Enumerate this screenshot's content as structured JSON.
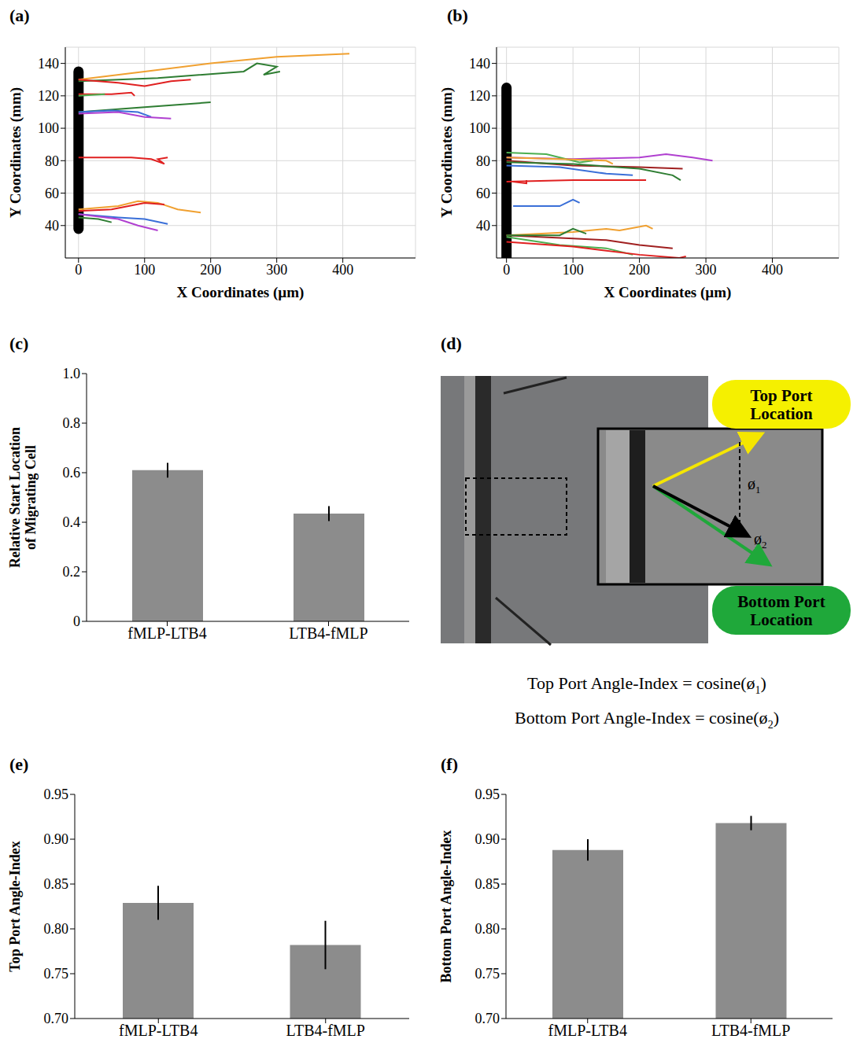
{
  "chart_data": [
    {
      "panel": "(a)",
      "type": "line",
      "x_label": "X Coordinates (µm)",
      "y_label": "Y Coordinates (mm)",
      "xlim": [
        -20,
        510
      ],
      "xticks": [
        0,
        100,
        200,
        300,
        400
      ],
      "ylim": [
        20,
        150
      ],
      "yticks": [
        40,
        60,
        80,
        100,
        120,
        140
      ],
      "grid": true,
      "channel": [
        38,
        135
      ],
      "series": [
        {
          "color": "#f0a030",
          "x": [
            0,
            100,
            200,
            300,
            410
          ],
          "values": [
            130,
            135,
            140,
            144,
            146
          ]
        },
        {
          "color": "#2e7d32",
          "x": [
            0,
            120,
            250,
            270,
            300,
            280,
            305
          ],
          "values": [
            129,
            131,
            135,
            140,
            138,
            133,
            135
          ]
        },
        {
          "color": "#e02020",
          "x": [
            0,
            60,
            100,
            140,
            170
          ],
          "values": [
            130,
            128,
            126,
            129,
            130
          ]
        },
        {
          "color": "#e02020",
          "x": [
            0,
            50,
            80,
            85
          ],
          "values": [
            121,
            121,
            122,
            120
          ]
        },
        {
          "color": "#4caf50",
          "x": [
            0,
            40
          ],
          "values": [
            120,
            121
          ]
        },
        {
          "color": "#2e7d32",
          "x": [
            0,
            100,
            200
          ],
          "values": [
            110,
            113,
            116
          ]
        },
        {
          "color": "#3a6fd8",
          "x": [
            0,
            50,
            90,
            110
          ],
          "values": [
            110,
            111,
            110,
            107
          ]
        },
        {
          "color": "#b040d0",
          "x": [
            0,
            60,
            100,
            140
          ],
          "values": [
            109,
            110,
            107,
            106
          ]
        },
        {
          "color": "#e02020",
          "x": [
            0,
            80,
            110,
            130,
            120,
            135
          ],
          "values": [
            82,
            82,
            81,
            78,
            81,
            82
          ]
        },
        {
          "color": "#f0a030",
          "x": [
            0,
            60,
            90,
            120,
            150,
            185
          ],
          "values": [
            50,
            52,
            55,
            54,
            50,
            48
          ]
        },
        {
          "color": "#e02020",
          "x": [
            0,
            50,
            100,
            130
          ],
          "values": [
            49,
            50,
            54,
            53
          ]
        },
        {
          "color": "#3a6fd8",
          "x": [
            0,
            60,
            100,
            135
          ],
          "values": [
            47,
            45,
            44,
            41
          ]
        },
        {
          "color": "#b040d0",
          "x": [
            0,
            60,
            90,
            120
          ],
          "values": [
            47,
            44,
            40,
            37
          ]
        },
        {
          "color": "#2e7d32",
          "x": [
            0,
            30,
            50
          ],
          "values": [
            45,
            44,
            42
          ]
        }
      ]
    },
    {
      "panel": "(b)",
      "type": "line",
      "x_label": "X Coordinates (µm)",
      "y_label": "Y Coordinates (mm)",
      "xlim": [
        -15,
        500
      ],
      "xticks": [
        0,
        100,
        200,
        300,
        400
      ],
      "ylim": [
        20,
        150
      ],
      "yticks": [
        40,
        60,
        80,
        100,
        120,
        140
      ],
      "grid": true,
      "channel": [
        20,
        125
      ],
      "series": [
        {
          "color": "#b040d0",
          "x": [
            0,
            100,
            200,
            240,
            280,
            310
          ],
          "values": [
            82,
            81,
            82,
            84,
            82,
            80
          ]
        },
        {
          "color": "#a02020",
          "x": [
            0,
            100,
            200,
            265
          ],
          "values": [
            80,
            77,
            76,
            75
          ]
        },
        {
          "color": "#2e7d32",
          "x": [
            0,
            100,
            200,
            250,
            262
          ],
          "values": [
            79,
            78,
            75,
            71,
            68
          ]
        },
        {
          "color": "#4caf50",
          "x": [
            0,
            60,
            110,
            130
          ],
          "values": [
            85,
            84,
            79,
            80
          ]
        },
        {
          "color": "#f0a030",
          "x": [
            0,
            80,
            150,
            160
          ],
          "values": [
            82,
            81,
            80,
            78
          ]
        },
        {
          "color": "#3a6fd8",
          "x": [
            0,
            80,
            150,
            190
          ],
          "values": [
            77,
            76,
            72,
            71
          ]
        },
        {
          "color": "#e02020",
          "x": [
            0,
            100,
            150,
            210
          ],
          "values": [
            67,
            68,
            68,
            68
          ]
        },
        {
          "color": "#e02020",
          "x": [
            10,
            30,
            30
          ],
          "values": [
            67,
            66,
            68
          ]
        },
        {
          "color": "#3a6fd8",
          "x": [
            10,
            80,
            100,
            110
          ],
          "values": [
            52,
            52,
            56,
            54
          ]
        },
        {
          "color": "#f0a030",
          "x": [
            0,
            100,
            150,
            170,
            210,
            220
          ],
          "values": [
            34,
            36,
            38,
            37,
            40,
            38
          ]
        },
        {
          "color": "#a02020",
          "x": [
            0,
            100,
            150,
            200,
            250
          ],
          "values": [
            34,
            32,
            31,
            28,
            26
          ]
        },
        {
          "color": "#2e7d32",
          "x": [
            0,
            80,
            100,
            120
          ],
          "values": [
            34,
            34,
            38,
            35
          ]
        },
        {
          "color": "#4caf50",
          "x": [
            0,
            80,
            150,
            190
          ],
          "values": [
            33,
            28,
            26,
            22
          ]
        },
        {
          "color": "#e02020",
          "x": [
            0,
            100,
            200,
            260,
            270
          ],
          "values": [
            30,
            27,
            22,
            20,
            21
          ]
        }
      ]
    },
    {
      "panel": "(c)",
      "type": "bar",
      "y_label": "Relative Start Location of Migrating Cell",
      "categories": [
        "fMLP-LTB4",
        "LTB4-fMLP"
      ],
      "values": [
        0.61,
        0.435
      ],
      "errors": [
        0.03,
        0.03
      ],
      "color": "#8c8c8c",
      "ylim": [
        0,
        1
      ],
      "yticks": [
        0,
        0.2,
        0.4,
        0.6,
        0.8,
        {
          "value": 1,
          "label": "1.0"
        }
      ],
      "grid": false
    },
    {
      "panel": "(e)",
      "type": "bar",
      "y_label": "Top Port Angle-Index",
      "categories": [
        "fMLP-LTB4",
        "LTB4-fMLP"
      ],
      "values": [
        0.829,
        0.782
      ],
      "errors": [
        0.019,
        0.027
      ],
      "color": "#8c8c8c",
      "ylim": [
        0.7,
        0.95
      ],
      "yticks": [
        {
          "value": 0.7,
          "label": "0.70"
        },
        0.75,
        {
          "value": 0.8,
          "label": "0.80"
        },
        0.85,
        {
          "value": 0.9,
          "label": "0.90"
        },
        0.95
      ],
      "grid": false
    },
    {
      "panel": "(f)",
      "type": "bar",
      "y_label": "Bottom Port Angle-Index",
      "categories": [
        "fMLP-LTB4",
        "LTB4-fMLP"
      ],
      "values": [
        0.888,
        0.918
      ],
      "errors": [
        0.012,
        0.008
      ],
      "color": "#8c8c8c",
      "ylim": [
        0.7,
        0.95
      ],
      "yticks": [
        {
          "value": 0.7,
          "label": "0.70"
        },
        0.75,
        {
          "value": 0.8,
          "label": "0.80"
        },
        0.85,
        {
          "value": 0.9,
          "label": "0.90"
        },
        0.95
      ],
      "grid": false
    }
  ],
  "diagram": {
    "panel": "(d)",
    "top_port": "Top Port Location",
    "bottom_port": "Bottom Port Location",
    "angle_1": {
      "symbol": "ø",
      "sub": "1"
    },
    "angle_2": {
      "symbol": "ø",
      "sub": "2"
    },
    "formulas": [
      {
        "text": "Top Port Angle-Index = cosine(ø",
        "sub": "1",
        "end": ")"
      },
      {
        "text": "Bottom Port Angle-Index = cosine(ø",
        "sub": "2",
        "end": ")"
      }
    ]
  }
}
